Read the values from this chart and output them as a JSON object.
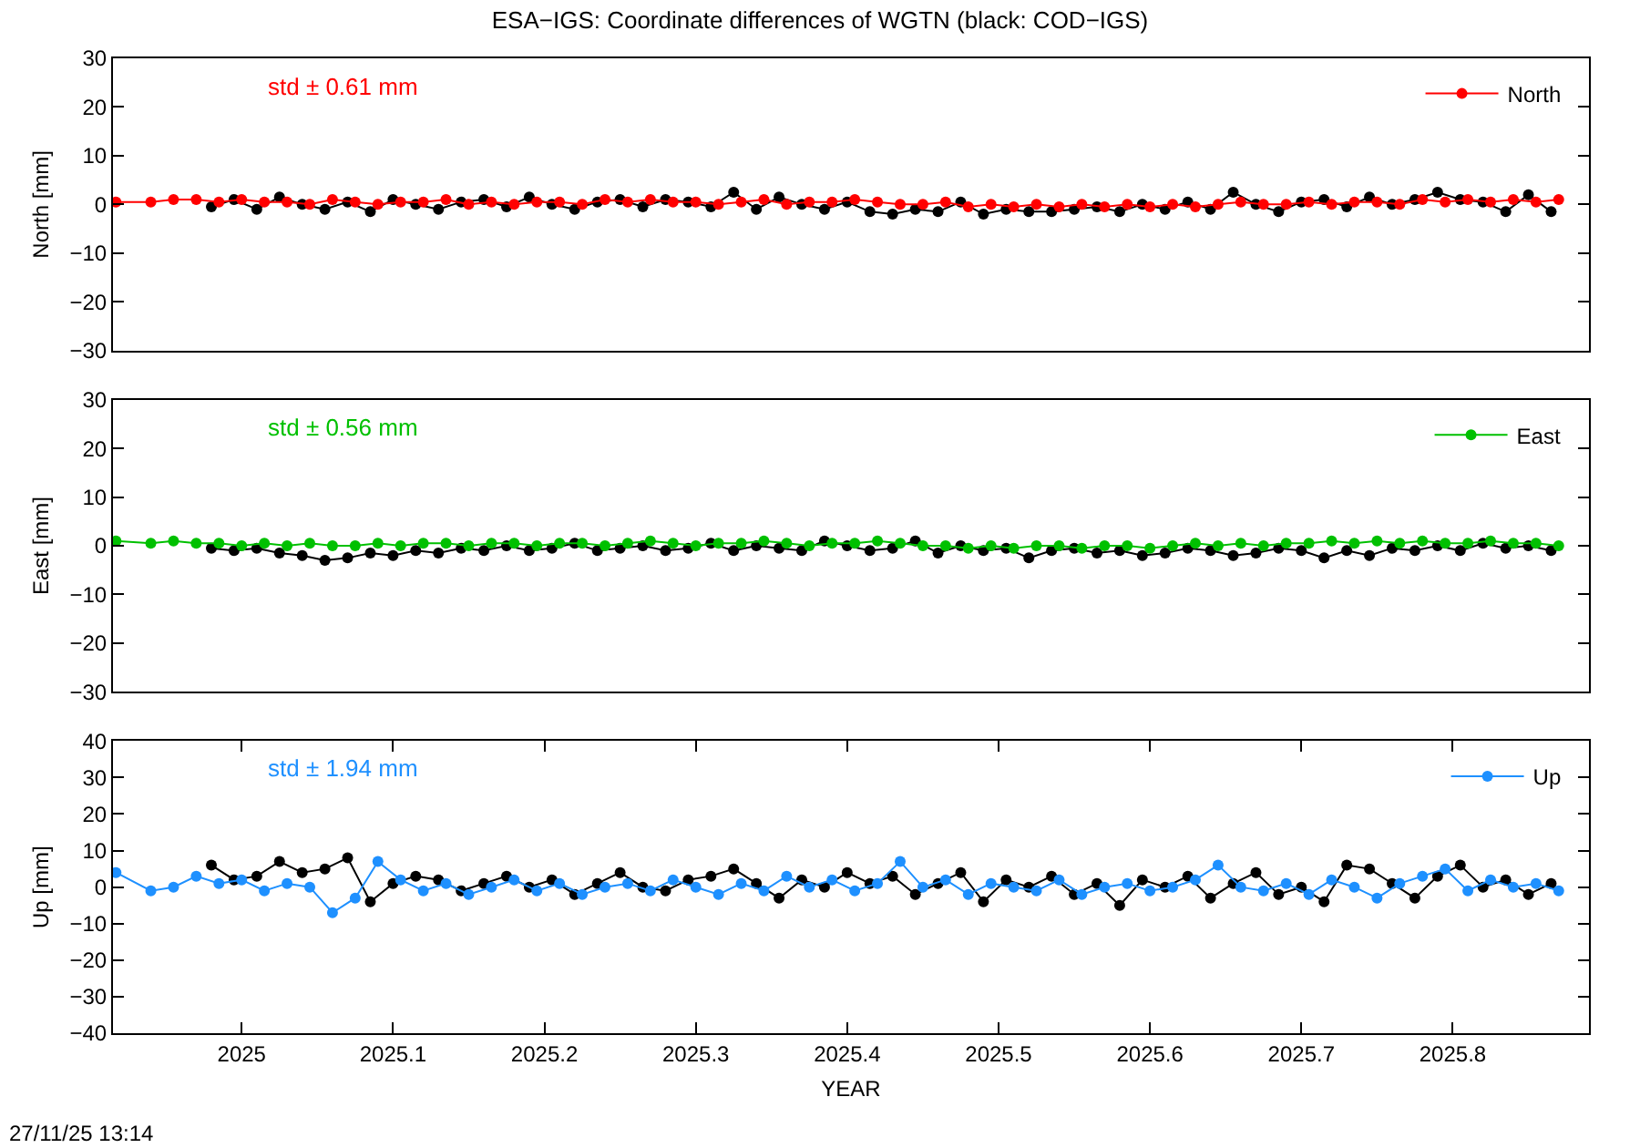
{
  "chart_data": [
    {
      "type": "line",
      "title": "ESA−IGS: Coordinate differences of WGTN (black: COD−IGS)",
      "ylabel": "North [mm]",
      "annotations": [
        "std ± 0.61 mm"
      ],
      "xlim": [
        2024.915,
        2025.89
      ],
      "ylim": [
        -30,
        30
      ],
      "yticks": [
        -30,
        -20,
        -10,
        0,
        10,
        20,
        30
      ],
      "tick_labels": "y",
      "legend": "top right",
      "marker": "circle",
      "series": [
        {
          "color": "#000000",
          "x": [
            2024.98,
            2024.995,
            2025.01,
            2025.025,
            2025.04,
            2025.055,
            2025.07,
            2025.085,
            2025.1,
            2025.115,
            2025.13,
            2025.145,
            2025.16,
            2025.175,
            2025.19,
            2025.205,
            2025.22,
            2025.235,
            2025.25,
            2025.265,
            2025.28,
            2025.295,
            2025.31,
            2025.325,
            2025.34,
            2025.355,
            2025.37,
            2025.385,
            2025.4,
            2025.415,
            2025.43,
            2025.445,
            2025.46,
            2025.475,
            2025.49,
            2025.505,
            2025.52,
            2025.535,
            2025.55,
            2025.565,
            2025.58,
            2025.595,
            2025.61,
            2025.625,
            2025.64,
            2025.655,
            2025.67,
            2025.685,
            2025.7,
            2025.715,
            2025.73,
            2025.745,
            2025.76,
            2025.775,
            2025.79,
            2025.805,
            2025.82,
            2025.835,
            2025.85,
            2025.865
          ],
          "values": [
            -0.5,
            1,
            -1,
            1.5,
            0,
            -1,
            0.5,
            -1.5,
            1,
            0,
            -1,
            0.5,
            1,
            -0.5,
            1.5,
            0,
            -1,
            0.5,
            1,
            -0.5,
            1,
            0.5,
            -0.5,
            2.5,
            -1,
            1.5,
            0,
            -1,
            0.5,
            -1.5,
            -2,
            -1,
            -1.5,
            0.5,
            -2,
            -1,
            -1.5,
            -1.5,
            -1,
            -0.5,
            -1.5,
            0,
            -1,
            0.5,
            -1,
            2.5,
            0,
            -1.5,
            0.5,
            1,
            -0.5,
            1.5,
            0,
            1,
            2.5,
            1,
            0.5,
            -1.5,
            2,
            -1.5
          ]
        },
        {
          "name": "North",
          "color": "#ff0000",
          "x": [
            2024.917,
            2024.94,
            2024.955,
            2024.97,
            2024.985,
            2025.0,
            2025.015,
            2025.03,
            2025.045,
            2025.06,
            2025.075,
            2025.09,
            2025.105,
            2025.12,
            2025.135,
            2025.15,
            2025.165,
            2025.18,
            2025.195,
            2025.21,
            2025.225,
            2025.24,
            2025.255,
            2025.27,
            2025.285,
            2025.3,
            2025.315,
            2025.33,
            2025.345,
            2025.36,
            2025.375,
            2025.39,
            2025.405,
            2025.42,
            2025.435,
            2025.45,
            2025.465,
            2025.48,
            2025.495,
            2025.51,
            2025.525,
            2025.54,
            2025.555,
            2025.57,
            2025.585,
            2025.6,
            2025.615,
            2025.63,
            2025.645,
            2025.66,
            2025.675,
            2025.69,
            2025.705,
            2025.72,
            2025.735,
            2025.75,
            2025.765,
            2025.78,
            2025.795,
            2025.81,
            2025.825,
            2025.84,
            2025.855,
            2025.87
          ],
          "values": [
            0.5,
            0.5,
            1,
            1,
            0.5,
            1,
            0.5,
            0.5,
            0,
            1,
            0.5,
            0,
            0.5,
            0.5,
            1,
            0,
            0.5,
            0,
            0.5,
            0.5,
            0,
            1,
            0.5,
            1,
            0.5,
            0.5,
            0,
            0.5,
            1,
            0,
            0.5,
            0.5,
            1,
            0.5,
            0,
            0,
            0.5,
            -0.5,
            0,
            -0.5,
            0,
            -0.5,
            0,
            -0.5,
            0,
            -0.5,
            0,
            -0.5,
            0,
            0.5,
            0,
            0,
            0.5,
            0,
            0.5,
            0.5,
            0,
            1,
            0.5,
            1,
            0.5,
            1,
            0.5,
            1
          ]
        }
      ]
    },
    {
      "type": "line",
      "ylabel": "East [mm]",
      "annotations": [
        "std ± 0.56 mm"
      ],
      "xlim": [
        2024.915,
        2025.89
      ],
      "ylim": [
        -30,
        30
      ],
      "yticks": [
        -30,
        -20,
        -10,
        0,
        10,
        20,
        30
      ],
      "tick_labels": "y",
      "legend": "top right",
      "marker": "circle",
      "series": [
        {
          "color": "#000000",
          "x": [
            2024.98,
            2024.995,
            2025.01,
            2025.025,
            2025.04,
            2025.055,
            2025.07,
            2025.085,
            2025.1,
            2025.115,
            2025.13,
            2025.145,
            2025.16,
            2025.175,
            2025.19,
            2025.205,
            2025.22,
            2025.235,
            2025.25,
            2025.265,
            2025.28,
            2025.295,
            2025.31,
            2025.325,
            2025.34,
            2025.355,
            2025.37,
            2025.385,
            2025.4,
            2025.415,
            2025.43,
            2025.445,
            2025.46,
            2025.475,
            2025.49,
            2025.505,
            2025.52,
            2025.535,
            2025.55,
            2025.565,
            2025.58,
            2025.595,
            2025.61,
            2025.625,
            2025.64,
            2025.655,
            2025.67,
            2025.685,
            2025.7,
            2025.715,
            2025.73,
            2025.745,
            2025.76,
            2025.775,
            2025.79,
            2025.805,
            2025.82,
            2025.835,
            2025.85,
            2025.865
          ],
          "values": [
            -0.5,
            -1,
            -0.5,
            -1.5,
            -2,
            -3,
            -2.5,
            -1.5,
            -2,
            -1,
            -1.5,
            -0.5,
            -1,
            0,
            -1,
            -0.5,
            0.5,
            -1,
            -0.5,
            0,
            -1,
            -0.5,
            0.5,
            -1,
            0,
            -0.5,
            -1,
            1,
            0,
            -1,
            -0.5,
            1,
            -1.5,
            0,
            -1,
            -0.5,
            -2.5,
            -1,
            -0.5,
            -1.5,
            -1,
            -2,
            -1.5,
            -0.5,
            -1,
            -2,
            -1.5,
            -0.5,
            -1,
            -2.5,
            -1,
            -2,
            -0.5,
            -1,
            0,
            -1,
            0.5,
            -0.5,
            0,
            -1
          ]
        },
        {
          "name": "East",
          "color": "#00c000",
          "x": [
            2024.917,
            2024.94,
            2024.955,
            2024.97,
            2024.985,
            2025.0,
            2025.015,
            2025.03,
            2025.045,
            2025.06,
            2025.075,
            2025.09,
            2025.105,
            2025.12,
            2025.135,
            2025.15,
            2025.165,
            2025.18,
            2025.195,
            2025.21,
            2025.225,
            2025.24,
            2025.255,
            2025.27,
            2025.285,
            2025.3,
            2025.315,
            2025.33,
            2025.345,
            2025.36,
            2025.375,
            2025.39,
            2025.405,
            2025.42,
            2025.435,
            2025.45,
            2025.465,
            2025.48,
            2025.495,
            2025.51,
            2025.525,
            2025.54,
            2025.555,
            2025.57,
            2025.585,
            2025.6,
            2025.615,
            2025.63,
            2025.645,
            2025.66,
            2025.675,
            2025.69,
            2025.705,
            2025.72,
            2025.735,
            2025.75,
            2025.765,
            2025.78,
            2025.795,
            2025.81,
            2025.825,
            2025.84,
            2025.855,
            2025.87
          ],
          "values": [
            1,
            0.5,
            1,
            0.5,
            0.5,
            0,
            0.5,
            0,
            0.5,
            0,
            0,
            0.5,
            0,
            0.5,
            0.5,
            0,
            0.5,
            0.5,
            0,
            0.5,
            0.5,
            0,
            0.5,
            1,
            0.5,
            0,
            0.5,
            0.5,
            1,
            0.5,
            0,
            0.5,
            0.5,
            1,
            0.5,
            0,
            0,
            -0.5,
            0,
            -0.5,
            0,
            0,
            -0.5,
            0,
            0,
            -0.5,
            0,
            0.5,
            0,
            0.5,
            0,
            0.5,
            0.5,
            1,
            0.5,
            1,
            0.5,
            1,
            0.5,
            0.5,
            1,
            0.5,
            0.5,
            0
          ]
        }
      ]
    },
    {
      "type": "line",
      "ylabel": "Up [mm]",
      "xlabel": "YEAR",
      "annotations": [
        "std ± 1.94 mm",
        "27/11/25 13:14"
      ],
      "xlim": [
        2024.915,
        2025.89
      ],
      "xticks": [
        2025,
        2025.1,
        2025.2,
        2025.3,
        2025.4,
        2025.5,
        2025.6,
        2025.7,
        2025.8
      ],
      "ylim": [
        -40,
        40
      ],
      "yticks": [
        -40,
        -30,
        -20,
        -10,
        0,
        10,
        20,
        30,
        40
      ],
      "legend": "top right",
      "marker": "circle",
      "series": [
        {
          "color": "#000000",
          "x": [
            2024.98,
            2024.995,
            2025.01,
            2025.025,
            2025.04,
            2025.055,
            2025.07,
            2025.085,
            2025.1,
            2025.115,
            2025.13,
            2025.145,
            2025.16,
            2025.175,
            2025.19,
            2025.205,
            2025.22,
            2025.235,
            2025.25,
            2025.265,
            2025.28,
            2025.295,
            2025.31,
            2025.325,
            2025.34,
            2025.355,
            2025.37,
            2025.385,
            2025.4,
            2025.415,
            2025.43,
            2025.445,
            2025.46,
            2025.475,
            2025.49,
            2025.505,
            2025.52,
            2025.535,
            2025.55,
            2025.565,
            2025.58,
            2025.595,
            2025.61,
            2025.625,
            2025.64,
            2025.655,
            2025.67,
            2025.685,
            2025.7,
            2025.715,
            2025.73,
            2025.745,
            2025.76,
            2025.775,
            2025.79,
            2025.805,
            2025.82,
            2025.835,
            2025.85,
            2025.865
          ],
          "values": [
            6,
            2,
            3,
            7,
            4,
            5,
            8,
            -4,
            1,
            3,
            2,
            -1,
            1,
            3,
            0,
            2,
            -2,
            1,
            4,
            0,
            -1,
            2,
            3,
            5,
            1,
            -3,
            2,
            0,
            4,
            1,
            3,
            -2,
            1,
            4,
            -4,
            2,
            0,
            3,
            -2,
            1,
            -5,
            2,
            0,
            3,
            -3,
            1,
            4,
            -2,
            0,
            -4,
            6,
            5,
            1,
            -3,
            3,
            6,
            0,
            2,
            -2,
            1
          ]
        },
        {
          "name": "Up",
          "color": "#1e90ff",
          "x": [
            2024.917,
            2024.94,
            2024.955,
            2024.97,
            2024.985,
            2025.0,
            2025.015,
            2025.03,
            2025.045,
            2025.06,
            2025.075,
            2025.09,
            2025.105,
            2025.12,
            2025.135,
            2025.15,
            2025.165,
            2025.18,
            2025.195,
            2025.21,
            2025.225,
            2025.24,
            2025.255,
            2025.27,
            2025.285,
            2025.3,
            2025.315,
            2025.33,
            2025.345,
            2025.36,
            2025.375,
            2025.39,
            2025.405,
            2025.42,
            2025.435,
            2025.45,
            2025.465,
            2025.48,
            2025.495,
            2025.51,
            2025.525,
            2025.54,
            2025.555,
            2025.57,
            2025.585,
            2025.6,
            2025.615,
            2025.63,
            2025.645,
            2025.66,
            2025.675,
            2025.69,
            2025.705,
            2025.72,
            2025.735,
            2025.75,
            2025.765,
            2025.78,
            2025.795,
            2025.81,
            2025.825,
            2025.84,
            2025.855,
            2025.87
          ],
          "values": [
            4,
            -1,
            0,
            3,
            1,
            2,
            -1,
            1,
            0,
            -7,
            -3,
            7,
            2,
            -1,
            1,
            -2,
            0,
            2,
            -1,
            1,
            -2,
            0,
            1,
            -1,
            2,
            0,
            -2,
            1,
            -1,
            3,
            0,
            2,
            -1,
            1,
            7,
            0,
            2,
            -2,
            1,
            0,
            -1,
            2,
            -2,
            0,
            1,
            -1,
            0,
            2,
            6,
            0,
            -1,
            1,
            -2,
            2,
            0,
            -3,
            1,
            3,
            5,
            -1,
            2,
            0,
            1,
            -1
          ]
        }
      ]
    }
  ]
}
